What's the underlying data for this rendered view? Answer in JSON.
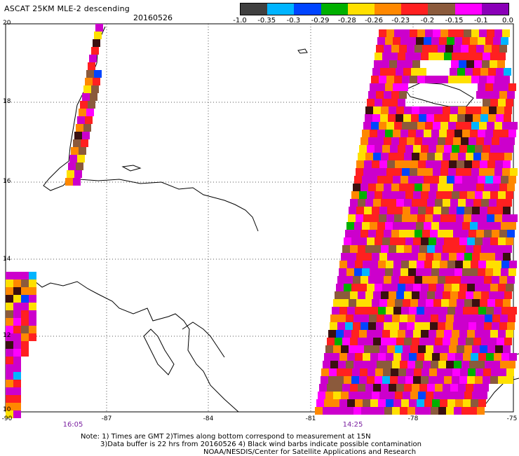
{
  "header": {
    "title": "ASCAT 25KM MLE-2 descending",
    "date": "20160526"
  },
  "colorbar": {
    "colors": [
      "#404040",
      "#00b4ff",
      "#0044ff",
      "#00b000",
      "#ffe000",
      "#ff8800",
      "#ff2020",
      "#8b5a3c",
      "#ff00ff",
      "#8a00b8"
    ],
    "labels": [
      "-1.0",
      "-0.35",
      "-0.3",
      "-0.29",
      "-0.28",
      "-0.26",
      "-0.23",
      "-0.2",
      "-0.15",
      "-0.1",
      "0.0"
    ]
  },
  "axes": {
    "lat_labels": [
      "20",
      "18",
      "16",
      "14",
      "12",
      "10"
    ],
    "lon_labels": [
      "-90",
      "-87",
      "-84",
      "-81",
      "-78",
      "-75"
    ]
  },
  "times": [
    "16:05",
    "14:25"
  ],
  "notes": {
    "line1": "Note: 1) Times are GMT 2)Times along bottom correspond to measurement at 15N",
    "line2": "3)Data buffer is 22 hrs from 20160526 4) Black wind barbs indicate possible contamination",
    "line3": "NOAA/NESDIS/Center for Satellite Applications and Research"
  }
}
